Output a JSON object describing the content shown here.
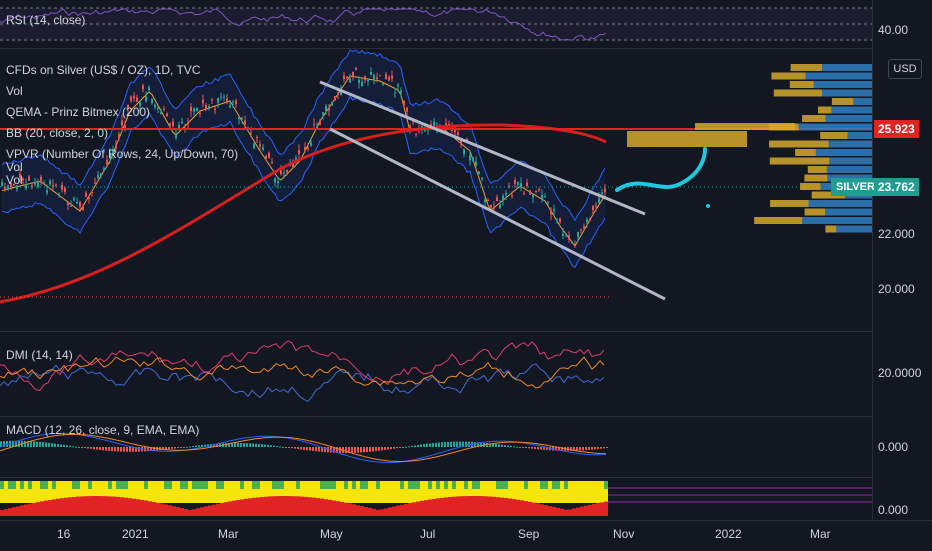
{
  "rsi": {
    "legend": "RSI (14, close)",
    "axis_label": "40.00"
  },
  "main": {
    "legend_lines": [
      "CFDs on Silver (US$ / OZ), 1D, TVC",
      "Vol",
      "QEMA - Prinz Bitmex (200)",
      "BB (20, close, 2, 0)",
      "VPVR (Number Of Rows, 24, Up/Down, 70)",
      "Vol",
      "Vol"
    ],
    "axis_labels": [
      "22.000",
      "20.000"
    ],
    "currency_button": "USD",
    "price_tag_red": "25.923",
    "price_tag_symbol": "SILVER",
    "price_tag_current": "23.762"
  },
  "dmi": {
    "legend": "DMI (14, 14)",
    "axis_label": "20.0000"
  },
  "macd": {
    "legend": "MACD (12, 26, close, 9, EMA, EMA)",
    "axis_label": "0.000"
  },
  "bottom": {
    "axis_label": "0.000"
  },
  "time_axis": [
    "16",
    "2021",
    "Mar",
    "May",
    "Jul",
    "Sep",
    "Nov",
    "2022",
    "Mar"
  ],
  "colors": {
    "background": "#131722",
    "up": "#26a69a",
    "down": "#ef5350",
    "red_line": "#e02424",
    "channel": "#b0b8c8",
    "projection": "#1ec8e0",
    "bb": "#2962ff",
    "vp_up": "#d4a82a",
    "vp_down": "#2f7fc1",
    "rsi": "#7e57c2",
    "dmi_plus": "#3f6bd1",
    "dmi_minus": "#e03c6a",
    "adx": "#f0862a"
  }
}
